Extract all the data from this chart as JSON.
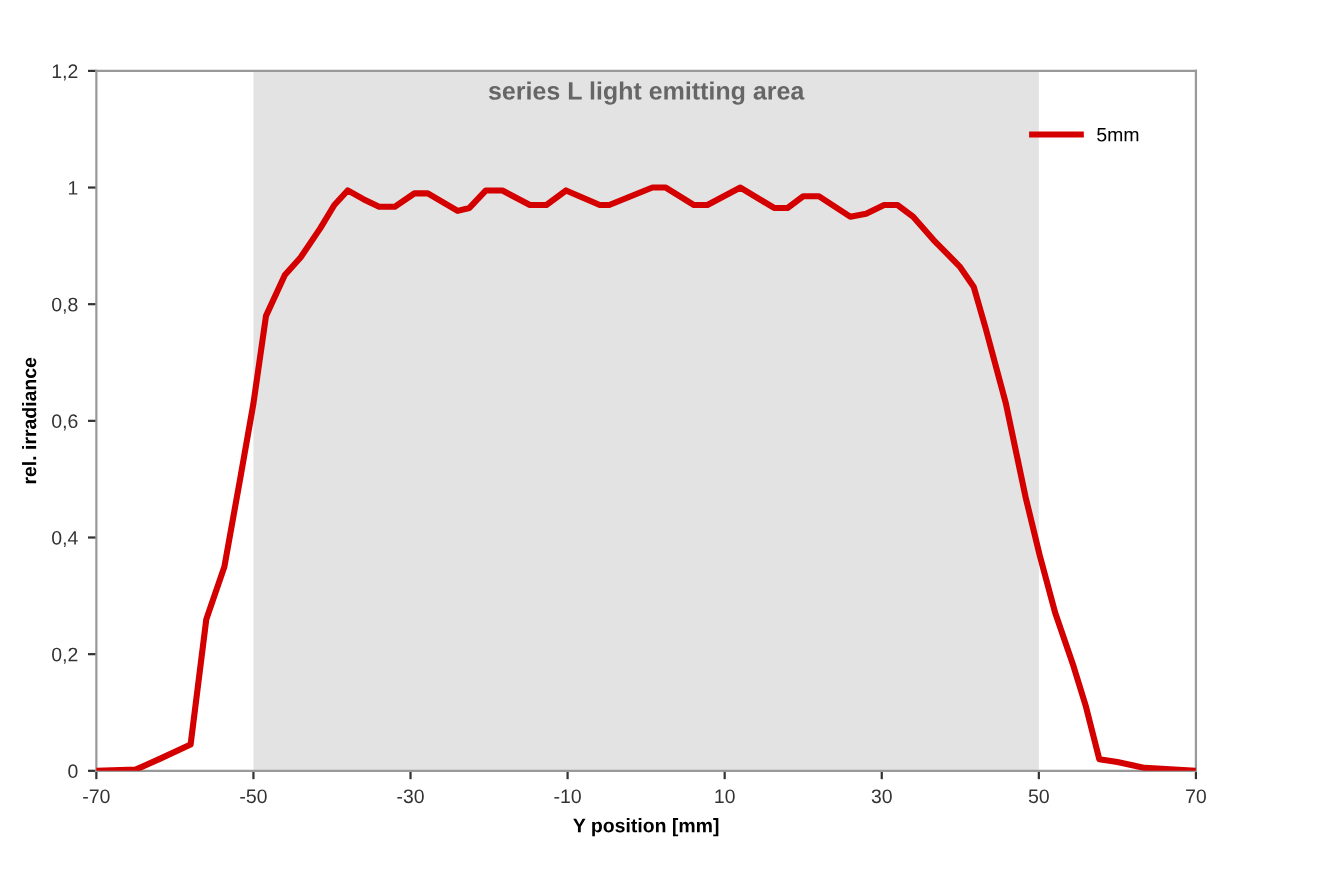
{
  "chart_data": {
    "type": "line",
    "xlabel": "Y position [mm]",
    "ylabel": "rel. irradiance",
    "series": [
      {
        "name": "5mm",
        "color": "#d40000",
        "x": [
          -70,
          -65,
          -62,
          -58,
          -56,
          -53.7,
          -51.7,
          -50,
          -48.4,
          -46,
          -44,
          -41.5,
          -39.7,
          -38,
          -36,
          -34,
          -32,
          -29.5,
          -27.8,
          -24,
          -22.5,
          -20.4,
          -18.3,
          -14.8,
          -12.7,
          -10.2,
          -5.9,
          -4.7,
          0.8,
          2.5,
          6.1,
          7.8,
          12,
          16.3,
          18,
          20,
          22,
          26,
          28,
          30.3,
          32,
          34,
          36.6,
          39.9,
          41.7,
          43.2,
          45.8,
          48.3,
          50.1,
          52.1,
          54.4,
          56,
          57.7,
          60,
          63.5,
          70
        ],
        "values": [
          0,
          0.002,
          0.02,
          0.045,
          0.26,
          0.35,
          0.5,
          0.63,
          0.78,
          0.85,
          0.88,
          0.93,
          0.97,
          0.995,
          0.98,
          0.967,
          0.967,
          0.99,
          0.99,
          0.96,
          0.965,
          0.995,
          0.995,
          0.97,
          0.97,
          0.995,
          0.97,
          0.97,
          1.0,
          1.0,
          0.97,
          0.97,
          1.0,
          0.965,
          0.965,
          0.985,
          0.985,
          0.95,
          0.955,
          0.97,
          0.97,
          0.95,
          0.91,
          0.865,
          0.83,
          0.76,
          0.63,
          0.47,
          0.37,
          0.27,
          0.18,
          0.11,
          0.02,
          0.015,
          0.005,
          0
        ]
      }
    ],
    "xlim": [
      -70,
      70
    ],
    "xticks": [
      -70,
      -50,
      -30,
      -10,
      10,
      30,
      50,
      70
    ],
    "ylim": [
      0,
      1.2
    ],
    "yticks": [
      0,
      {
        "value": 0.2,
        "label": "0,2"
      },
      {
        "value": 0.4,
        "label": "0,4"
      },
      {
        "value": 0.6,
        "label": "0,6"
      },
      {
        "value": 0.8,
        "label": "0,8"
      },
      1,
      {
        "value": 1.2,
        "label": "1,2"
      }
    ],
    "bands": [
      {
        "axis": "x",
        "from": -50,
        "to": 50,
        "label": "series L light emitting area",
        "color": "#e3e3e3"
      }
    ],
    "grid": false,
    "legend": "top right",
    "marker": "none",
    "line_style": "solid"
  }
}
